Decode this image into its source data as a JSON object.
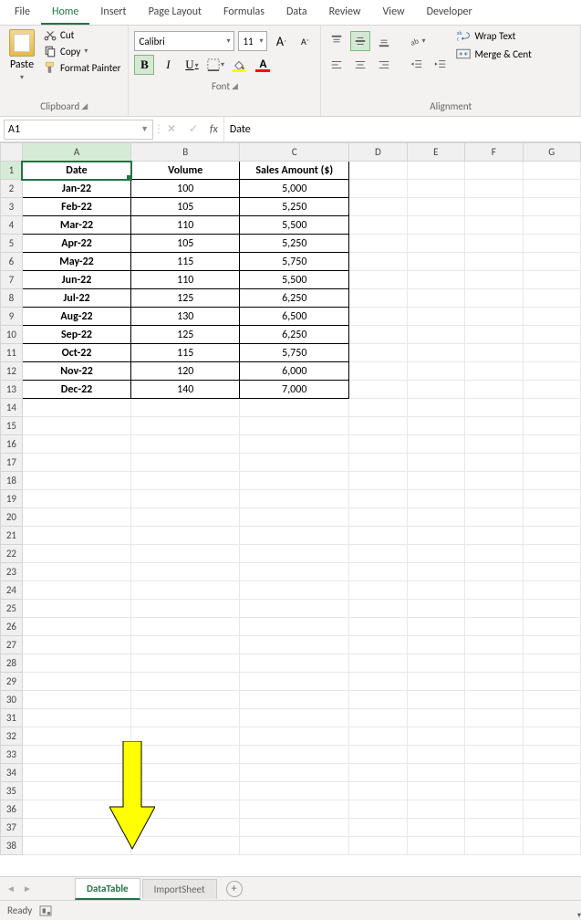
{
  "ribbon": {
    "tabs": [
      "File",
      "Home",
      "Insert",
      "Page Layout",
      "Formulas",
      "Data",
      "Review",
      "View",
      "Developer"
    ],
    "active_tab_index": 1,
    "clipboard": {
      "paste": "Paste",
      "cut": "Cut",
      "copy": "Copy",
      "format_painter": "Format Painter",
      "label": "Clipboard"
    },
    "font": {
      "name": "Calibri",
      "size": "11",
      "label": "Font"
    },
    "alignment": {
      "wrap": "Wrap Text",
      "merge": "Merge & Cent",
      "label": "Alignment"
    }
  },
  "name_box": "A1",
  "formula_bar": "Date",
  "columns": [
    "A",
    "B",
    "C",
    "D",
    "E",
    "F",
    "G"
  ],
  "data": {
    "headers": [
      "Date",
      "Volume",
      "Sales Amount ($)"
    ],
    "rows": [
      [
        "Jan-22",
        "100",
        "5,000"
      ],
      [
        "Feb-22",
        "105",
        "5,250"
      ],
      [
        "Mar-22",
        "110",
        "5,500"
      ],
      [
        "Apr-22",
        "105",
        "5,250"
      ],
      [
        "May-22",
        "115",
        "5,750"
      ],
      [
        "Jun-22",
        "110",
        "5,500"
      ],
      [
        "Jul-22",
        "125",
        "6,250"
      ],
      [
        "Aug-22",
        "130",
        "6,500"
      ],
      [
        "Sep-22",
        "125",
        "6,250"
      ],
      [
        "Oct-22",
        "115",
        "5,750"
      ],
      [
        "Nov-22",
        "120",
        "6,000"
      ],
      [
        "Dec-22",
        "140",
        "7,000"
      ]
    ]
  },
  "total_visible_rows": 38,
  "sheet_tabs": {
    "active": "DataTable",
    "inactive": "ImportSheet"
  },
  "status": "Ready",
  "colors": {
    "excel_green": "#217346",
    "arrow_fill": "#ffff00",
    "arrow_stroke": "#000000",
    "grid_header_bg": "#f0f0f0",
    "active_header_bg": "#d6ebd6"
  }
}
